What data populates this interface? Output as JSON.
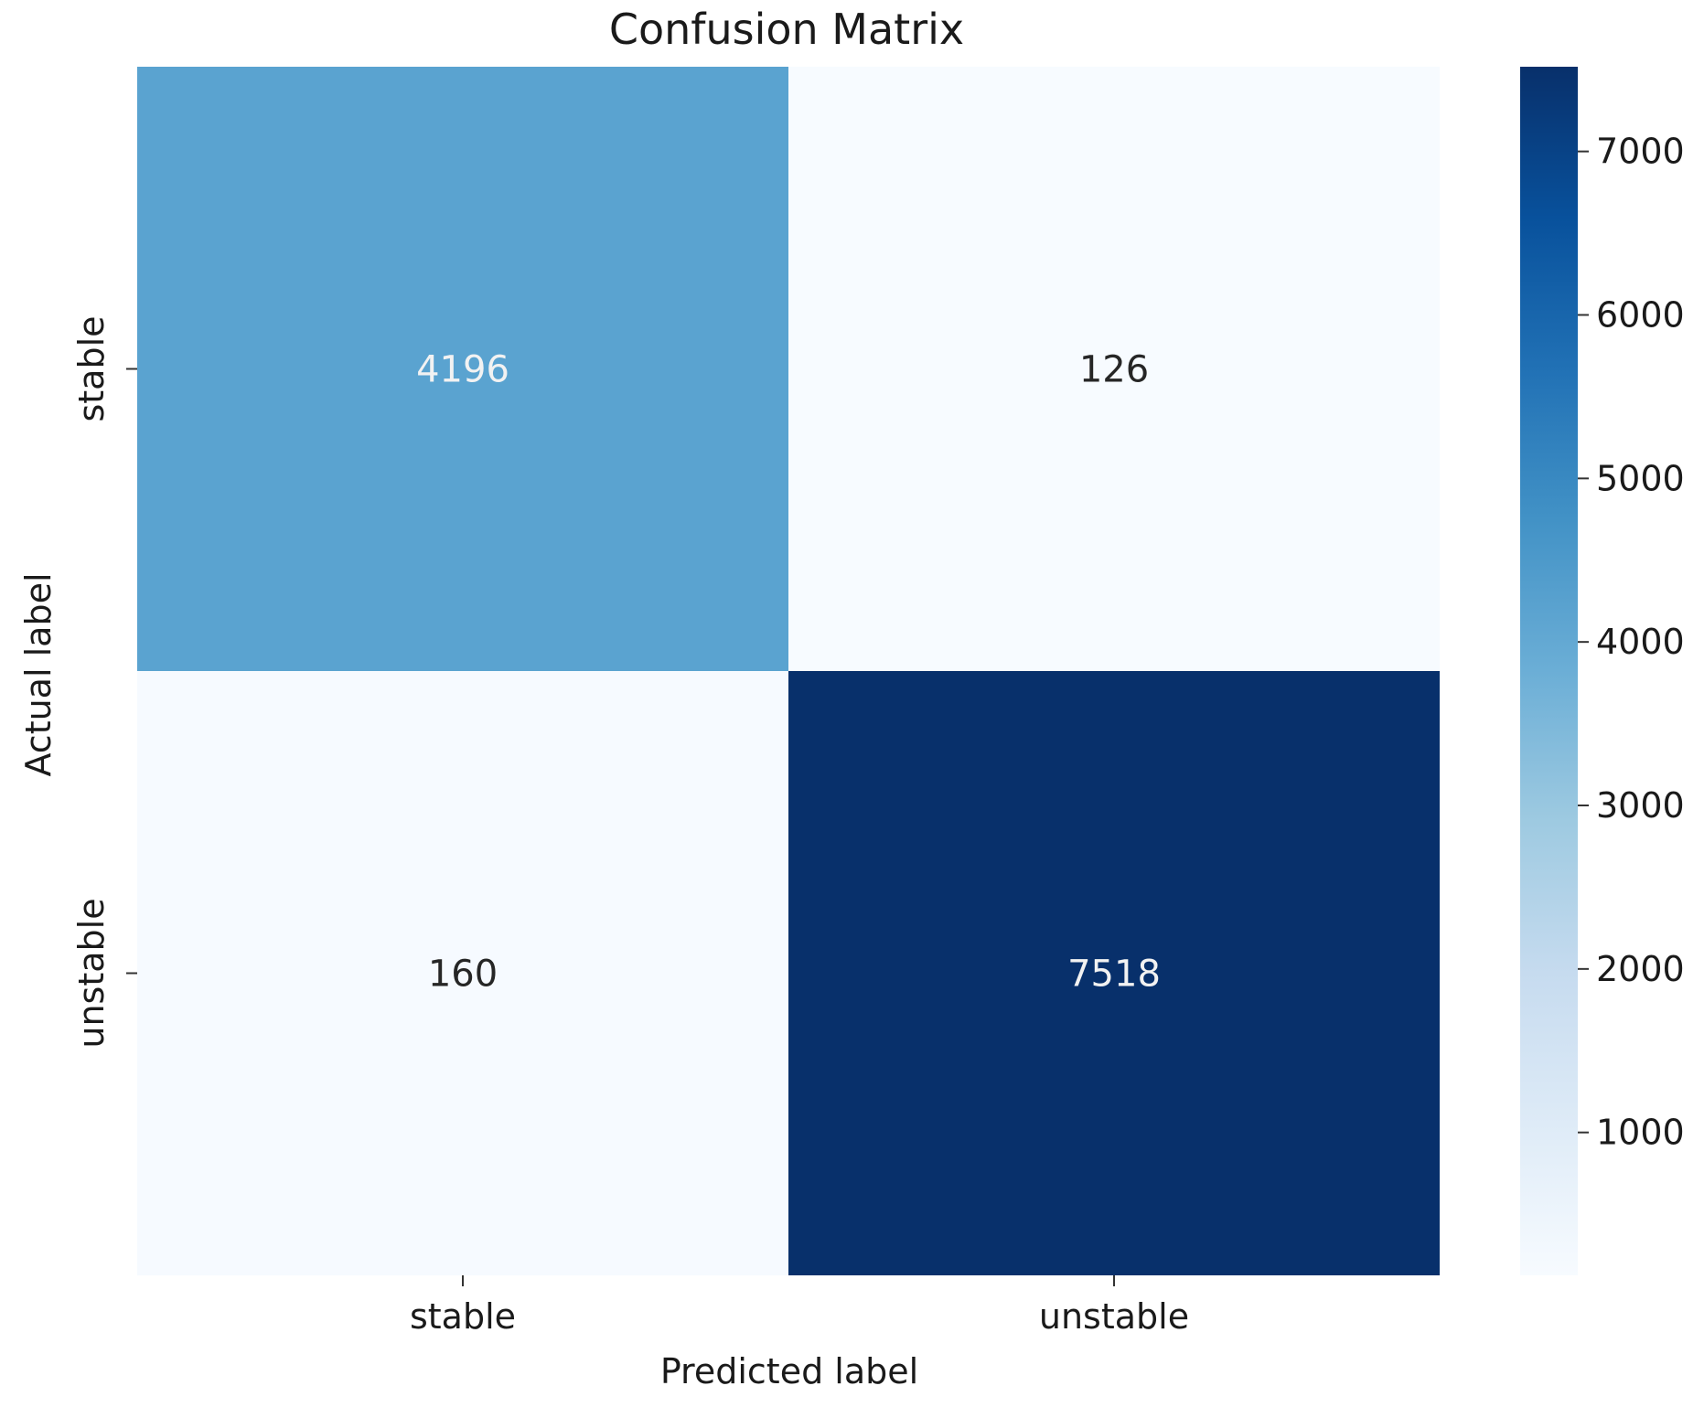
{
  "chart_data": {
    "type": "heatmap",
    "title": "Confusion Matrix",
    "xlabel": "Predicted label",
    "ylabel": "Actual label",
    "x_categories": [
      "stable",
      "unstable"
    ],
    "y_categories": [
      "stable",
      "unstable"
    ],
    "values": [
      [
        4196,
        126
      ],
      [
        160,
        7518
      ]
    ],
    "value_labels": [
      [
        "4196",
        "126"
      ],
      [
        "160",
        "7518"
      ]
    ],
    "colormap": "Blues",
    "colorbar": {
      "range": [
        126,
        7518
      ],
      "ticks": [
        1000,
        2000,
        3000,
        4000,
        5000,
        6000,
        7000
      ],
      "tick_labels": [
        "1000",
        "2000",
        "3000",
        "4000",
        "5000",
        "6000",
        "7000"
      ]
    },
    "colors": {
      "low": "#f7fbff",
      "high": "#08306b",
      "annotation_light": "#f2f2f2",
      "annotation_dark": "#262626"
    },
    "grid": false,
    "legend": "colorbar-right"
  }
}
